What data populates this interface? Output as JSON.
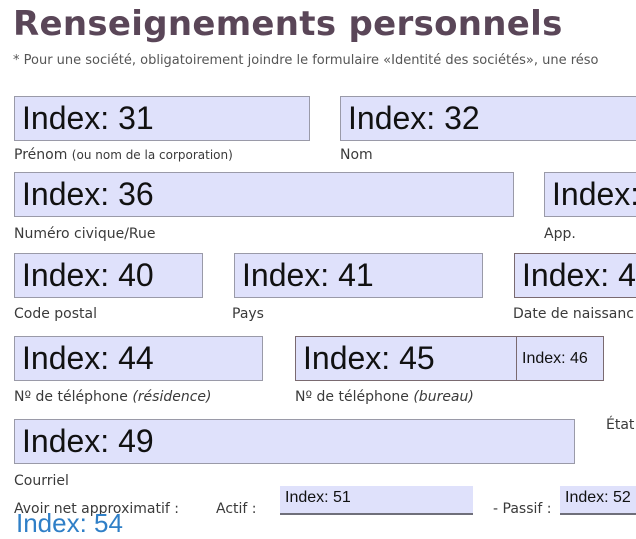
{
  "section_title": "Renseignements personnels",
  "note": "* Pour une société, obligatoirement joindre le formulaire «Identité des sociétés», une réso",
  "fields": {
    "f31": "Index: 31",
    "f32": "Index: 32",
    "f36": "Index: 36",
    "f37": "Index:",
    "f40": "Index: 40",
    "f41": "Index: 41",
    "f42": "Index: 4",
    "f44": "Index: 44",
    "f45": "Index: 45",
    "f46": "Index: 46",
    "f49": "Index: 49",
    "f51": "Index: 51",
    "f52": "Index: 52",
    "f54": "Index: 54"
  },
  "labels": {
    "prenom": "Prénom",
    "prenom_sub": "(ou nom de la corporation)",
    "nom": "Nom",
    "rue": "Numéro civique/Rue",
    "app": "App.",
    "code_postal": "Code postal",
    "pays": "Pays",
    "naissance": "Date de naissanc",
    "tel_res": "Nº de téléphone ",
    "tel_res_sub": "(résidence)",
    "tel_bur": "Nº de téléphone ",
    "tel_bur_sub": "(bureau)",
    "etat": "État",
    "courriel": "Courriel",
    "avoir": "Avoir net approximatif :",
    "actif": "Actif :",
    "passif": "- Passif :"
  }
}
